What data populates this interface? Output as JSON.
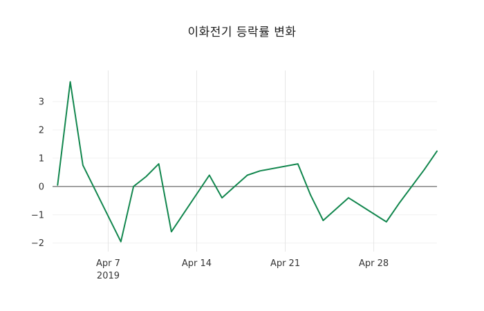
{
  "chart_data": {
    "type": "line",
    "title": "이화전기 등락률 변화",
    "xlabel": "",
    "ylabel": "",
    "legend": "none",
    "grid": true,
    "zero_line": true,
    "ylim": [
      -2.3,
      4.1
    ],
    "xlim_days_from_apr1": [
      2.6,
      33
    ],
    "y_ticks": [
      -2,
      -1,
      0,
      1,
      2,
      3
    ],
    "x_ticks": [
      {
        "date": "2019-04-07",
        "label": "Apr 7",
        "sublabel": "2019"
      },
      {
        "date": "2019-04-14",
        "label": "Apr 14"
      },
      {
        "date": "2019-04-21",
        "label": "Apr 21"
      },
      {
        "date": "2019-04-28",
        "label": "Apr 28"
      }
    ],
    "series": [
      {
        "name": "등락률(%)",
        "color": "#11864d",
        "points": [
          {
            "date": "2019-04-03",
            "value": 0.05
          },
          {
            "date": "2019-04-04",
            "value": 3.7
          },
          {
            "date": "2019-04-05",
            "value": 0.75
          },
          {
            "date": "2019-04-08",
            "value": -1.95
          },
          {
            "date": "2019-04-09",
            "value": 0.0
          },
          {
            "date": "2019-04-10",
            "value": 0.35
          },
          {
            "date": "2019-04-11",
            "value": 0.8
          },
          {
            "date": "2019-04-12",
            "value": -1.6
          },
          {
            "date": "2019-04-15",
            "value": 0.4
          },
          {
            "date": "2019-04-16",
            "value": -0.4
          },
          {
            "date": "2019-04-17",
            "value": 0.0
          },
          {
            "date": "2019-04-18",
            "value": 0.4
          },
          {
            "date": "2019-04-19",
            "value": 0.55
          },
          {
            "date": "2019-04-22",
            "value": 0.8
          },
          {
            "date": "2019-04-23",
            "value": -0.3
          },
          {
            "date": "2019-04-24",
            "value": -1.2
          },
          {
            "date": "2019-04-25",
            "value": -0.8
          },
          {
            "date": "2019-04-26",
            "value": -0.4
          },
          {
            "date": "2019-04-29",
            "value": -1.25
          },
          {
            "date": "2019-04-30",
            "value": -0.6
          },
          {
            "date": "2019-05-02",
            "value": 0.6
          },
          {
            "date": "2019-05-03",
            "value": 1.25
          }
        ]
      }
    ],
    "colors": {
      "line": "#11864d",
      "grid": "#e6e6e6",
      "grid_h": "#f0f0f0",
      "zero_line": "#444444",
      "tick_text": "#333333",
      "title_text": "#1a1a1a",
      "background": "#ffffff"
    }
  }
}
